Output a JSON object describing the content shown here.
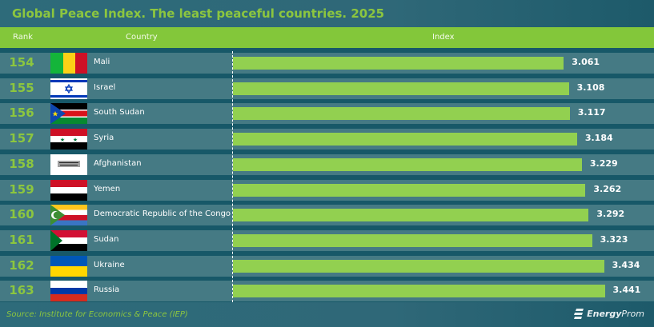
{
  "title": "Global Peace Index. The least peaceful countries. 2025",
  "header": {
    "rank": "Rank",
    "country": "Country",
    "index": "Index"
  },
  "source": "Source: Institute for Economics & Peace (IEP)",
  "brand": {
    "bold": "Energy",
    "light": "Prom"
  },
  "colors": {
    "accent": "#8cc63f",
    "bar": "#92d050",
    "row": "#457a84",
    "header": "#83c73a"
  },
  "chart_data": {
    "type": "bar",
    "orientation": "horizontal",
    "title": "Global Peace Index. The least peaceful countries. 2025",
    "xlabel": "Index",
    "ylabel": "Country",
    "rows": [
      {
        "rank": "154",
        "country": "Mali",
        "value": 3.061,
        "label": "3.061",
        "flag": "mali-flag"
      },
      {
        "rank": "155",
        "country": "Israel",
        "value": 3.108,
        "label": "3.108",
        "flag": "israel-flag"
      },
      {
        "rank": "156",
        "country": "South Sudan",
        "value": 3.117,
        "label": "3.117",
        "flag": "south-sudan-flag"
      },
      {
        "rank": "157",
        "country": "Syria",
        "value": 3.184,
        "label": "3.184",
        "flag": "syria-flag"
      },
      {
        "rank": "158",
        "country": "Afghanistan",
        "value": 3.229,
        "label": "3.229",
        "flag": "afghanistan-flag"
      },
      {
        "rank": "159",
        "country": "Yemen",
        "value": 3.262,
        "label": "3.262",
        "flag": "yemen-flag"
      },
      {
        "rank": "160",
        "country": "Democratic Republic of the Congo",
        "value": 3.292,
        "label": "3.292",
        "flag": "comoros-flag"
      },
      {
        "rank": "161",
        "country": "Sudan",
        "value": 3.323,
        "label": "3.323",
        "flag": "sudan-flag"
      },
      {
        "rank": "162",
        "country": "Ukraine",
        "value": 3.434,
        "label": "3.434",
        "flag": "ukraine-flag"
      },
      {
        "rank": "163",
        "country": "Russia",
        "value": 3.441,
        "label": "3.441",
        "flag": "russia-flag"
      }
    ],
    "xlim": [
      0,
      3.441
    ]
  }
}
